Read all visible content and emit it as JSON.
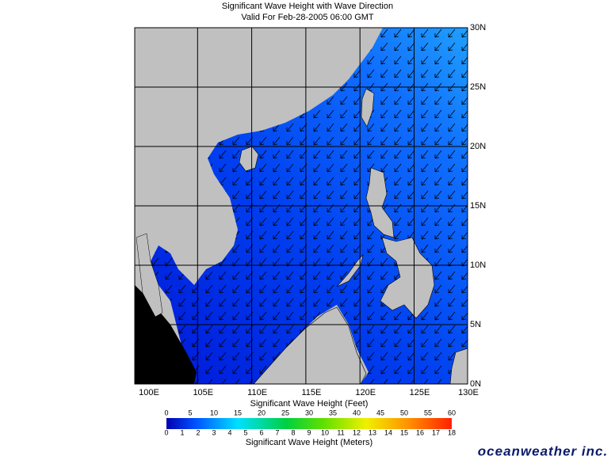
{
  "header": {
    "title": "Significant Wave Height with Wave Direction",
    "subtitle": "Valid For Feb-28-2005 06:00 GMT"
  },
  "map": {
    "longitude_labels": [
      "100E",
      "105E",
      "110E",
      "115E",
      "120E",
      "125E",
      "130E"
    ],
    "latitude_labels": [
      "30N",
      "25N",
      "20N",
      "15N",
      "10N",
      "5N",
      "0N"
    ]
  },
  "colorbar": {
    "feet_label": "Significant Wave Height (Feet)",
    "meters_label": "Significant Wave Height (Meters)",
    "feet_ticks": [
      0,
      5,
      10,
      15,
      20,
      25,
      30,
      35,
      40,
      45,
      50,
      55,
      60
    ],
    "meters_ticks": [
      0,
      1,
      2,
      3,
      4,
      5,
      6,
      7,
      8,
      9,
      10,
      11,
      12,
      13,
      14,
      15,
      16,
      17,
      18
    ]
  },
  "logo": "oceanweather inc."
}
